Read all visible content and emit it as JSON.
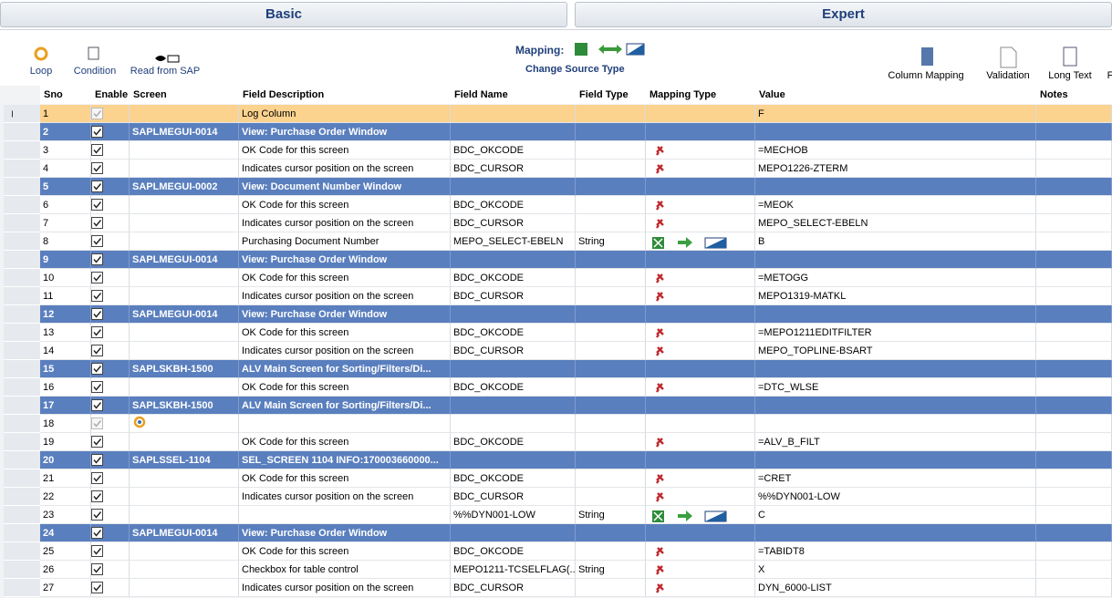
{
  "tabs": [
    "Basic",
    "Expert"
  ],
  "toolbar": {
    "left": [
      "Loop",
      "Condition",
      "Read from SAP"
    ],
    "mapping_label": "Mapping:",
    "mapping_action": "Change Source Type",
    "right": [
      "Column Mapping",
      "Validation",
      "Long Text",
      "F"
    ]
  },
  "table": {
    "columns": [
      "Sno",
      "Enable",
      "Screen",
      "Field Description",
      "Field Name",
      "Field Type",
      "Mapping Type",
      "Value",
      "Notes"
    ],
    "rows": [
      {
        "sno": 1,
        "description": "Log Column",
        "value": "F",
        "selected": true
      },
      {
        "sno": 2,
        "screen": "SAPLMEGUI-0014",
        "description": "View: Purchase Order Window"
      },
      {
        "sno": 3,
        "description": "OK Code for this screen",
        "field_name": "BDC_OKCODE",
        "value": "=MECHOB"
      },
      {
        "sno": 4,
        "description": "Indicates cursor position on the screen",
        "field_name": "BDC_CURSOR",
        "value": "MEPO1226-ZTERM"
      },
      {
        "sno": 5,
        "screen": "SAPLMEGUI-0002",
        "description": "View: Document Number Window"
      },
      {
        "sno": 6,
        "description": "OK Code for this screen",
        "field_name": "BDC_OKCODE",
        "value": "=MEOK"
      },
      {
        "sno": 7,
        "description": "Indicates cursor position on the screen",
        "field_name": "BDC_CURSOR",
        "value": "MEPO_SELECT-EBELN"
      },
      {
        "sno": 8,
        "description": "Purchasing Document Number",
        "field_name": "MEPO_SELECT-EBELN",
        "field_type": "String",
        "mapping": "source",
        "value": "B"
      },
      {
        "sno": 9,
        "screen": "SAPLMEGUI-0014",
        "description": "View: Purchase Order Window"
      },
      {
        "sno": 10,
        "description": "OK Code for this screen",
        "field_name": "BDC_OKCODE",
        "value": "=METOGG"
      },
      {
        "sno": 11,
        "description": "Indicates cursor position on the screen",
        "field_name": "BDC_CURSOR",
        "value": "MEPO1319-MATKL"
      },
      {
        "sno": 12,
        "screen": "SAPLMEGUI-0014",
        "description": "View: Purchase Order Window"
      },
      {
        "sno": 13,
        "description": "OK Code for this screen",
        "field_name": "BDC_OKCODE",
        "value": "=MEPO1211EDITFILTER"
      },
      {
        "sno": 14,
        "description": "Indicates cursor position on the screen",
        "field_name": "BDC_CURSOR",
        "value": "MEPO_TOPLINE-BSART"
      },
      {
        "sno": 15,
        "screen": "SAPLSKBH-1500",
        "description": "ALV Main Screen for Sorting/Filters/Di..."
      },
      {
        "sno": 16,
        "description": "OK Code for this screen",
        "field_name": "BDC_OKCODE",
        "value": "=DTC_WLSE"
      },
      {
        "sno": 17,
        "screen": "SAPLSKBH-1500",
        "description": "ALV Main Screen for Sorting/Filters/Di..."
      },
      {
        "sno": 18,
        "loop": true
      },
      {
        "sno": 19,
        "description": "OK Code for this screen",
        "field_name": "BDC_OKCODE",
        "value": "=ALV_B_FILT"
      },
      {
        "sno": 20,
        "screen": "SAPLSSEL-1104",
        "description": "SEL_SCREEN 1104 INFO:170003660000..."
      },
      {
        "sno": 21,
        "description": "OK Code for this screen",
        "field_name": "BDC_OKCODE",
        "value": "=CRET"
      },
      {
        "sno": 22,
        "description": "Indicates cursor position on the screen",
        "field_name": "BDC_CURSOR",
        "value": "%%DYN001-LOW"
      },
      {
        "sno": 23,
        "field_name": "%%DYN001-LOW",
        "field_type": "String",
        "mapping": "source",
        "value": "C"
      },
      {
        "sno": 24,
        "screen": "SAPLMEGUI-0014",
        "description": "View: Purchase Order Window"
      },
      {
        "sno": 25,
        "description": "OK Code for this screen",
        "field_name": "BDC_OKCODE",
        "value": "=TABIDT8"
      },
      {
        "sno": 26,
        "description": "Checkbox for table control",
        "field_name": "MEPO1211-TCSELFLAG(...",
        "field_type": "String",
        "value": "X"
      },
      {
        "sno": 27,
        "description": "Indicates cursor position on the screen",
        "field_name": "BDC_CURSOR",
        "value": "DYN_6000-LIST"
      }
    ]
  }
}
